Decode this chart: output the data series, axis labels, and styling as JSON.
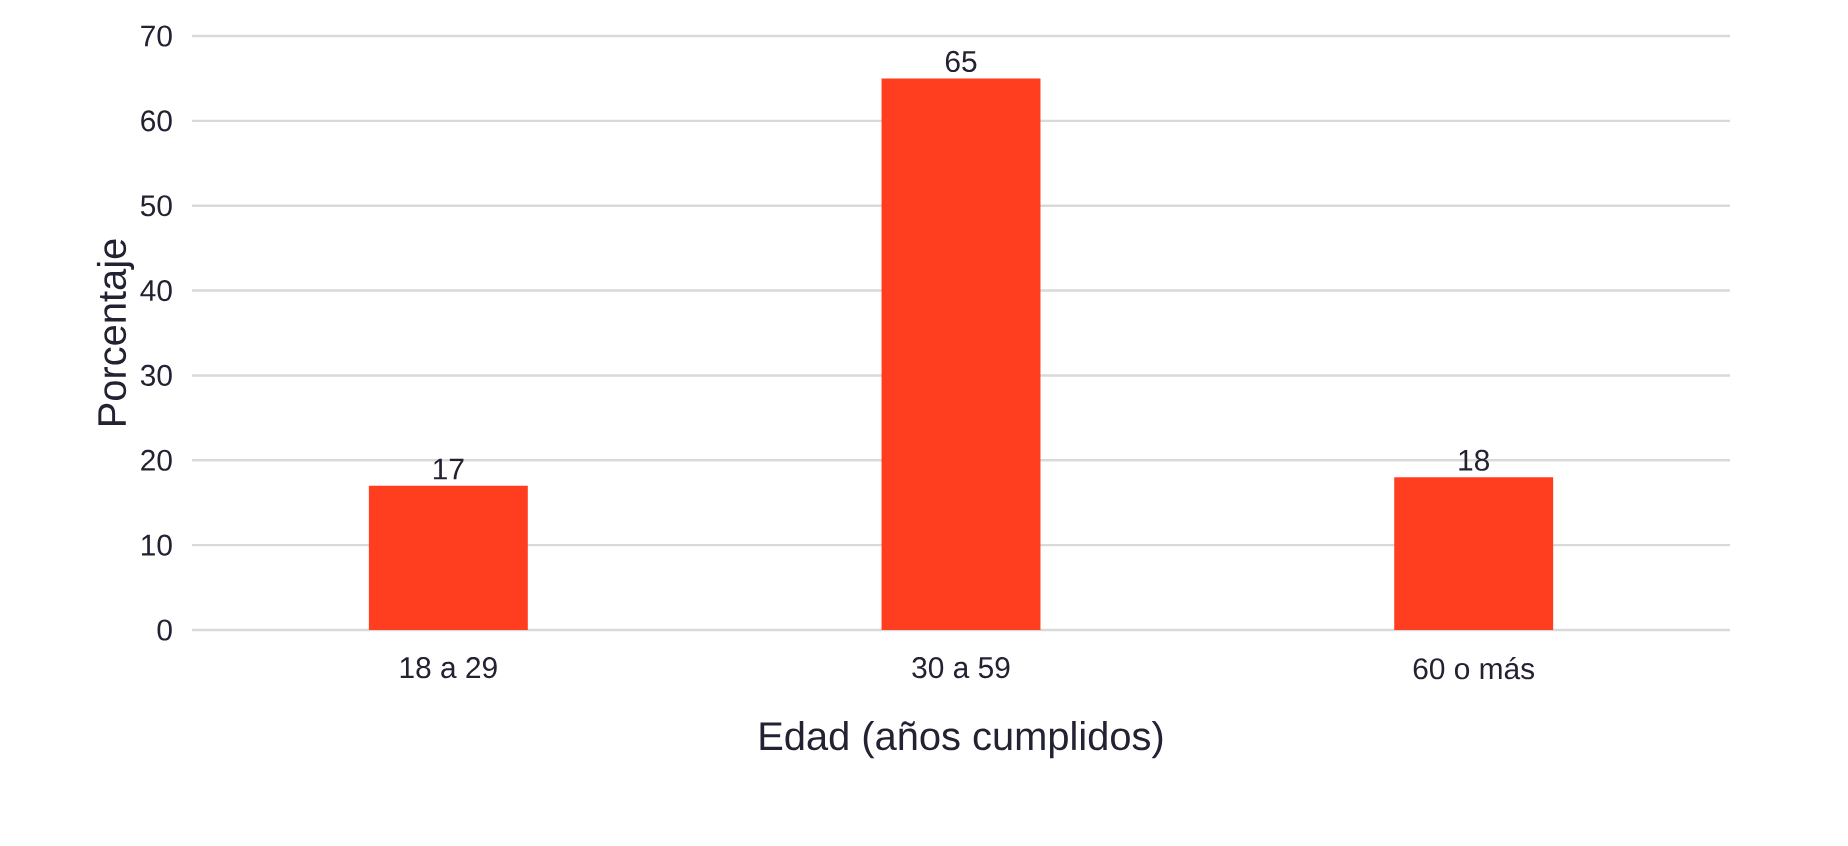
{
  "chart_data": {
    "type": "bar",
    "xlabel": "Edad (años cumplidos)",
    "ylabel": "Porcentaje",
    "categories": [
      "18 a 29",
      "30 a 59",
      "60 o más"
    ],
    "values": [
      17,
      65,
      18
    ],
    "color": "#ff3d1f",
    "ylim": [
      0,
      70
    ],
    "yticks": [
      0,
      10,
      20,
      30,
      40,
      50,
      60,
      70
    ],
    "grid": "y",
    "data_labels": true
  }
}
